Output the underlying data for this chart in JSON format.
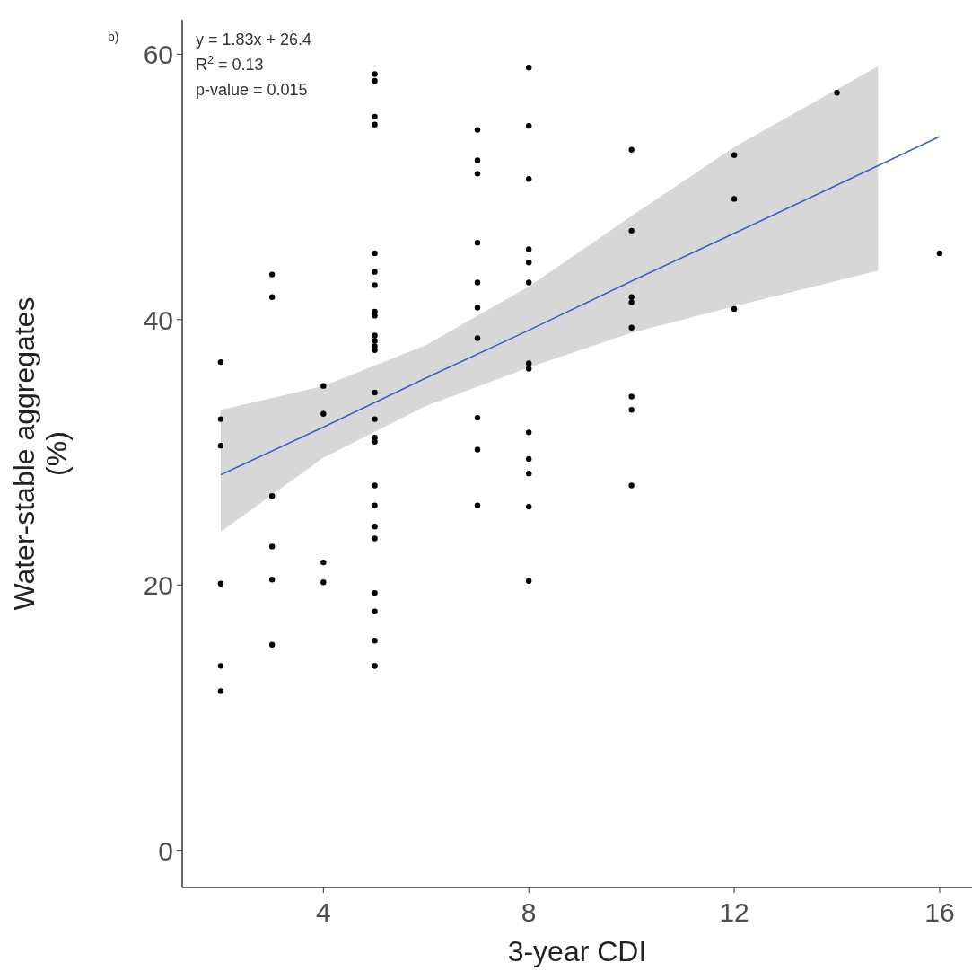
{
  "chart_data": {
    "type": "scatter",
    "xlabel": "3-year CDI",
    "ylabel": "Water-stable aggregates\n(%)",
    "xlim": [
      1.25,
      16.63
    ],
    "ylim": [
      -2.8,
      62.6
    ],
    "xticks": [
      4,
      8,
      12,
      16
    ],
    "yticks": [
      0,
      20,
      40,
      60
    ],
    "grid": false,
    "annotations": [
      "b)",
      "y = 1.83x + 26.4",
      "R$^{2}$ = 0.13",
      "p-value = 0.015"
    ],
    "series": [
      {
        "marker": "circle",
        "color": "#000000",
        "x": [
          2,
          2,
          2,
          2,
          2,
          2,
          3,
          3,
          3,
          3,
          3,
          3,
          4,
          4,
          4,
          4,
          5,
          5,
          5,
          5,
          5,
          5,
          5,
          5,
          5,
          5,
          5,
          5,
          5,
          5,
          5,
          5,
          5,
          5,
          5,
          5,
          5,
          5,
          5,
          5,
          5,
          5,
          7,
          7,
          7,
          7,
          7,
          7,
          7,
          7,
          7,
          7,
          8,
          8,
          8,
          8,
          8,
          8,
          8,
          8,
          8,
          8,
          8,
          8,
          8,
          10,
          10,
          10,
          10,
          10,
          10,
          10,
          10,
          12,
          12,
          12,
          14,
          16
        ],
        "values": [
          36.8,
          32.5,
          30.5,
          20.1,
          13.9,
          12.0,
          43.4,
          41.7,
          26.7,
          22.9,
          20.4,
          15.5,
          35.0,
          32.9,
          21.7,
          20.2,
          58.5,
          58.0,
          55.3,
          54.7,
          45.0,
          43.6,
          42.6,
          40.6,
          40.3,
          38.8,
          38.4,
          38.0,
          37.7,
          34.5,
          32.5,
          31.1,
          30.8,
          27.5,
          26.0,
          24.4,
          23.5,
          19.4,
          18.0,
          15.8,
          13.9,
          13.9,
          54.3,
          52.0,
          51.0,
          45.8,
          42.8,
          40.9,
          38.6,
          32.6,
          30.2,
          26.0,
          59.0,
          54.6,
          50.6,
          45.3,
          44.3,
          42.8,
          36.7,
          36.3,
          31.5,
          29.5,
          28.4,
          25.9,
          20.3,
          52.8,
          46.7,
          41.7,
          41.3,
          39.4,
          34.2,
          33.2,
          27.5,
          52.4,
          49.1,
          40.8,
          57.1,
          45.0
        ]
      },
      {
        "type": "line",
        "color": "#3b5fc9",
        "x": [
          2,
          4,
          6,
          8,
          10,
          12,
          14.8,
          16
        ],
        "values": [
          28.3,
          31.9,
          35.6,
          39.2,
          42.9,
          46.5,
          51.6,
          53.8
        ],
        "lower": [
          24.0,
          29.6,
          33.5,
          36.4,
          39.0,
          41.0,
          43.7,
          null
        ],
        "upper": [
          33.2,
          35.0,
          38.1,
          42.5,
          47.8,
          53.0,
          59.1,
          null
        ]
      }
    ]
  }
}
